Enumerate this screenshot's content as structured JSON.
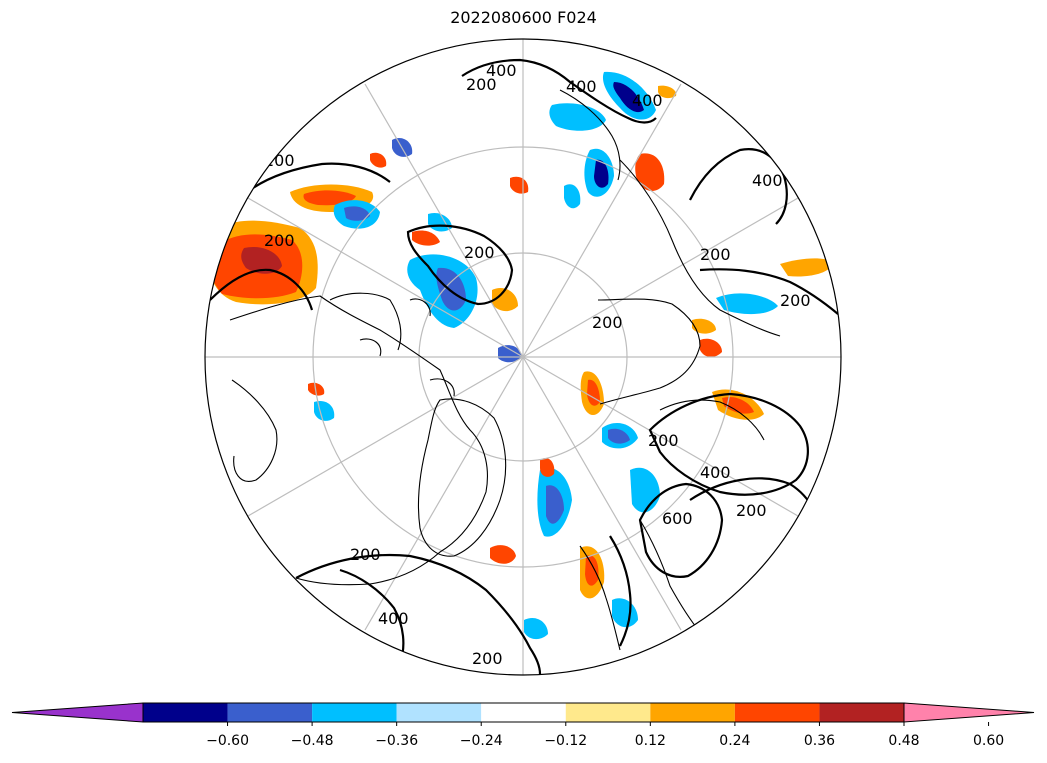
{
  "title": "2022080600 F024",
  "map": {
    "projection": "north-polar-stereographic",
    "graticule": "on",
    "contour_labels": [
      "400",
      "200",
      "400",
      "400",
      "200",
      "400",
      "200",
      "200",
      "200",
      "200",
      "200",
      "200",
      "400",
      "600",
      "200",
      "200",
      "400",
      "200"
    ]
  },
  "colorbar": {
    "ticks": [
      "−0.60",
      "−0.48",
      "−0.36",
      "−0.24",
      "−0.12",
      "0.12",
      "0.24",
      "0.36",
      "0.48",
      "0.60"
    ],
    "bins": [
      {
        "color": "#9932cc"
      },
      {
        "color": "#00008b"
      },
      {
        "color": "#3a5fcd"
      },
      {
        "color": "#00bfff"
      },
      {
        "color": "#b0e2ff"
      },
      {
        "color": "#ffffff"
      },
      {
        "color": "#ffe98c"
      },
      {
        "color": "#ffa500"
      },
      {
        "color": "#ff4500"
      },
      {
        "color": "#b22222"
      },
      {
        "color": "#ff82ab"
      }
    ],
    "extend": "both"
  },
  "colors": {
    "contour": "#000000",
    "graticule": "#bdbdbd",
    "blue_light": "#00bfff",
    "blue_mid": "#3a5fcd",
    "blue_dark": "#00008b",
    "orange": "#ffa500",
    "red_orange": "#ff4500",
    "dark_red": "#b22222",
    "yellow": "#ffe98c",
    "pale_blue": "#b0e2ff"
  }
}
